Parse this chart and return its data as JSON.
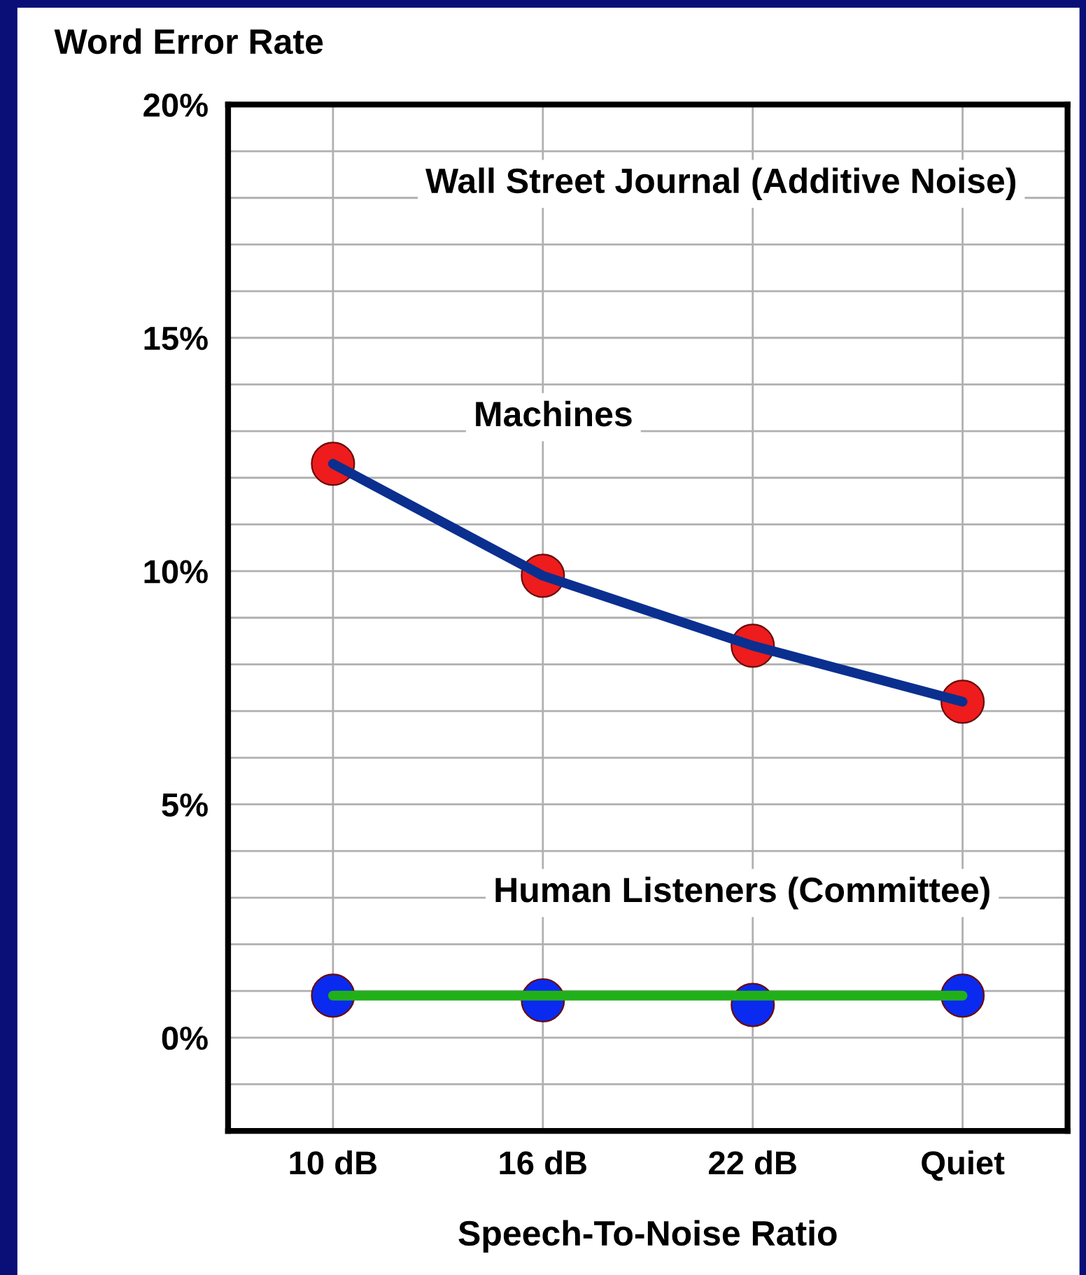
{
  "chart_data": {
    "type": "line",
    "title": "Wall Street Journal (Additive Noise)",
    "xlabel": "Speech-To-Noise Ratio",
    "ylabel": "Word Error Rate",
    "categories": [
      "10 dB",
      "16 dB",
      "22 dB",
      "Quiet"
    ],
    "series": [
      {
        "name": "Machines",
        "color": "#0a2f8f",
        "values": [
          12.3,
          9.9,
          8.4,
          7.2
        ]
      },
      {
        "type": "scatter",
        "color": "#ee1c1c",
        "values": [
          12.3,
          9.9,
          8.4,
          7.2
        ]
      },
      {
        "name": "Human Listeners (Committee)",
        "color": "#22b01a",
        "values": [
          0.9,
          0.9,
          0.9,
          0.9
        ]
      },
      {
        "type": "scatter",
        "color": "#0a2af0",
        "values": [
          0.9,
          0.8,
          0.7,
          0.9
        ]
      }
    ],
    "ylim": [
      -2,
      20
    ],
    "yticks": [
      {
        "value": -1,
        "label": null
      },
      {
        "value": 0,
        "label": "0%"
      },
      {
        "value": 1,
        "label": null
      },
      {
        "value": 2,
        "label": null
      },
      {
        "value": 3,
        "label": null
      },
      {
        "value": 4,
        "label": null
      },
      {
        "value": 5,
        "label": "5%"
      },
      {
        "value": 6,
        "label": null
      },
      {
        "value": 7,
        "label": null
      },
      {
        "value": 8,
        "label": null
      },
      {
        "value": 9,
        "label": null
      },
      {
        "value": 10,
        "label": "10%"
      },
      {
        "value": 11,
        "label": null
      },
      {
        "value": 12,
        "label": null
      },
      {
        "value": 13,
        "label": null
      },
      {
        "value": 14,
        "label": null
      },
      {
        "value": 15,
        "label": "15%"
      },
      {
        "value": 16,
        "label": null
      },
      {
        "value": 17,
        "label": null
      },
      {
        "value": 18,
        "label": null
      },
      {
        "value": 19,
        "label": null
      },
      {
        "value": 20,
        "label": "20%"
      }
    ],
    "grid": true
  }
}
